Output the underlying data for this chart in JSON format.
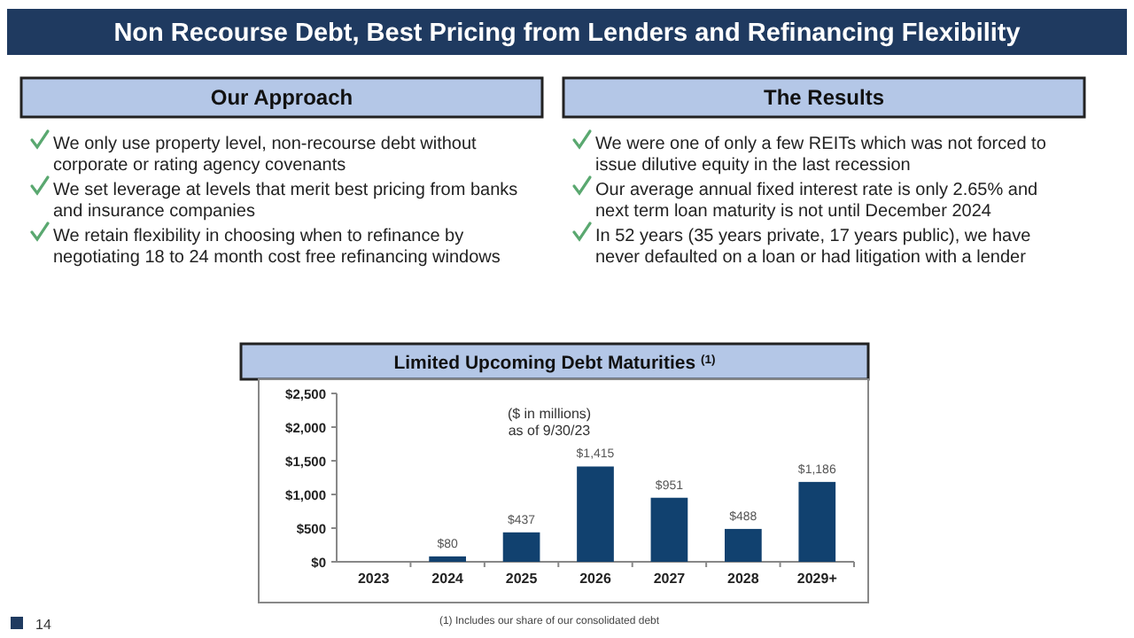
{
  "chart_data": [
    {
      "type": "other",
      "title": "Non Recourse Debt, Best Pricing from Lenders and Refinancing Flexibility"
    },
    {
      "type": "other",
      "title": "Our Approach",
      "annotations": [
        "We only use property level, non-recourse debt without corporate or rating agency covenants",
        "We set leverage at levels that merit best pricing from banks and insurance companies",
        "We retain flexibility in choosing when to refinance by negotiating 18 to 24 month cost free refinancing windows"
      ]
    },
    {
      "type": "other",
      "title": "The Results",
      "annotations": [
        "We were one of only a few REITs which was not forced to issue dilutive equity in the last recession",
        "Our average annual fixed interest rate is only 2.65% and next term loan maturity is not until December 2024",
        "In 52 years (35 years private, 17 years public), we have never defaulted on a loan or had litigation with a lender"
      ]
    },
    {
      "type": "bar",
      "title": "Limited Upcoming Debt Maturities $^{(1)}$",
      "subtitle": "($ in millions)\nas of 9/30/23",
      "categories": [
        "2023",
        "2024",
        "2025",
        "2026",
        "2027",
        "2028",
        "2029+"
      ],
      "values": [
        0,
        80,
        437,
        1415,
        951,
        488,
        1186
      ],
      "value_labels": [
        null,
        "$80",
        "$437",
        "$1,415",
        "$951",
        "$488",
        "$1,186"
      ],
      "color": "#11416f",
      "ylim": [
        0,
        2500
      ],
      "yticks": [
        {
          "value": 0,
          "label": "$0"
        },
        {
          "value": 500,
          "label": "$500"
        },
        {
          "value": 1000,
          "label": "$1,000"
        },
        {
          "value": 1500,
          "label": "$1,500"
        },
        {
          "value": 2000,
          "label": "$2,000"
        },
        {
          "value": 2500,
          "label": "$2,500"
        }
      ],
      "grid": false,
      "annotations": [
        "(1) Includes our share of our consolidated debt",
        "14"
      ]
    }
  ]
}
